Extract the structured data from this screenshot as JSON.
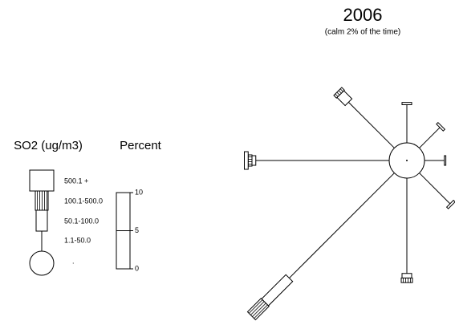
{
  "chart_data": {
    "type": "rose",
    "title": "2006",
    "subtitle": "(calm 2% of the time)",
    "legend_title": "SO2 (ug/m3)",
    "scale_title": "Percent",
    "calm_label": ".",
    "ylim": [
      0,
      10
    ],
    "yticks": [
      0,
      5,
      10
    ],
    "color": "#000000",
    "series": [
      {
        "name": "1.1-50.0",
        "values": [
          5.0,
          3.8,
          2.6,
          5.7,
          12.5,
          19.5,
          17.5,
          8.5
        ]
      },
      {
        "name": "50.1-100.0",
        "values": [
          0.3,
          0.3,
          0.2,
          0.3,
          0.6,
          4.5,
          0.5,
          1.5
        ]
      },
      {
        "name": "100.1-500.0",
        "values": [
          0,
          0,
          0,
          0,
          0.6,
          2.5,
          0.5,
          0.5
        ]
      },
      {
        "name": "500.1 +",
        "values": [
          0,
          0,
          0,
          0,
          0,
          0,
          0.5,
          0
        ]
      }
    ]
  }
}
